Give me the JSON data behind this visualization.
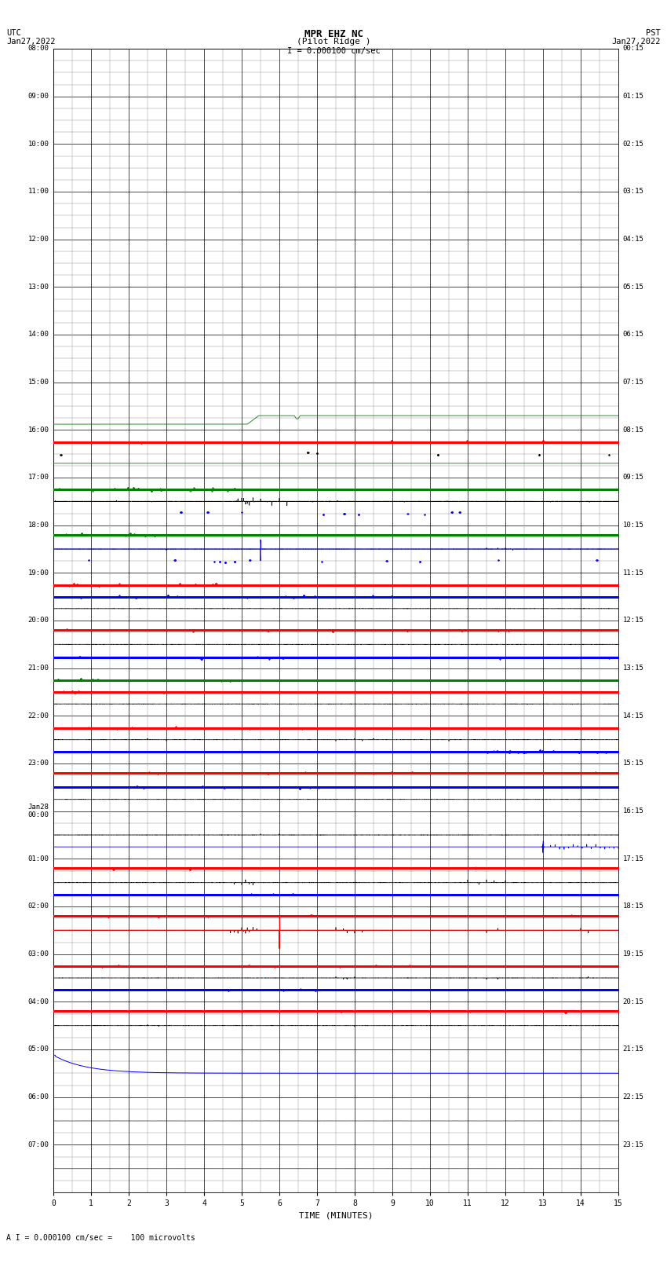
{
  "title_line1": "MPR EHZ NC",
  "title_line2": "(Pilot Ridge )",
  "scale_label": "I = 0.000100 cm/sec",
  "footer_label": "A I = 0.000100 cm/sec =    100 microvolts",
  "xlabel": "TIME (MINUTES)",
  "x_ticks": [
    0,
    1,
    2,
    3,
    4,
    5,
    6,
    7,
    8,
    9,
    10,
    11,
    12,
    13,
    14,
    15
  ],
  "x_min": 0,
  "x_max": 15,
  "left_times": [
    "08:00",
    "09:00",
    "10:00",
    "11:00",
    "12:00",
    "13:00",
    "14:00",
    "15:00",
    "16:00",
    "17:00",
    "18:00",
    "19:00",
    "20:00",
    "21:00",
    "22:00",
    "23:00",
    "Jan28\n00:00",
    "01:00",
    "02:00",
    "03:00",
    "04:00",
    "05:00",
    "06:00",
    "07:00"
  ],
  "right_times": [
    "00:15",
    "01:15",
    "02:15",
    "03:15",
    "04:15",
    "05:15",
    "06:15",
    "07:15",
    "08:15",
    "09:15",
    "10:15",
    "11:15",
    "12:15",
    "13:15",
    "14:15",
    "15:15",
    "16:15",
    "17:15",
    "18:15",
    "19:15",
    "20:15",
    "21:15",
    "22:15",
    "23:15"
  ],
  "n_rows": 24,
  "bg_color": "#ffffff",
  "grid_major_color": "#000000",
  "grid_minor_color": "#888888",
  "seed": 42
}
